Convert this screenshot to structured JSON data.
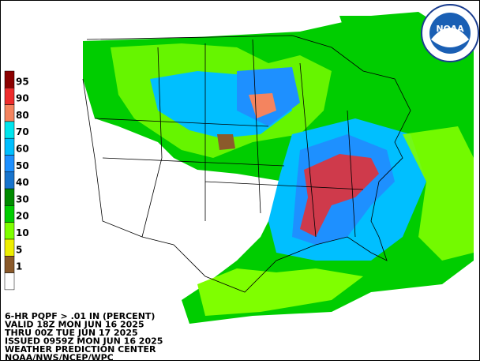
{
  "legend": [
    {
      "label": "95",
      "color": "#8b0000"
    },
    {
      "label": "90",
      "color": "#ee2c2c"
    },
    {
      "label": "80",
      "color": "#f4845f"
    },
    {
      "label": "70",
      "color": "#00e5ee"
    },
    {
      "label": "60",
      "color": "#00bfff"
    },
    {
      "label": "50",
      "color": "#1e90ff"
    },
    {
      "label": "40",
      "color": "#1874cd"
    },
    {
      "label": "30",
      "color": "#008b00"
    },
    {
      "label": "20",
      "color": "#00cd00"
    },
    {
      "label": "10",
      "color": "#7fff00"
    },
    {
      "label": "5",
      "color": "#eeee00"
    },
    {
      "label": "1",
      "color": "#8b5a2b"
    }
  ],
  "info": [
    "6-HR PQPF > .01 IN (PERCENT)",
    "VALID 18Z MON JUN 16 2025",
    "THRU 00Z TUE JUN 17 2025",
    "ISSUED 0959Z MON JUN 16 2025",
    "WEATHER PREDICTION CENTER",
    "NOAA/NWS/NCEP/WPC"
  ],
  "logo": "NOAA"
}
